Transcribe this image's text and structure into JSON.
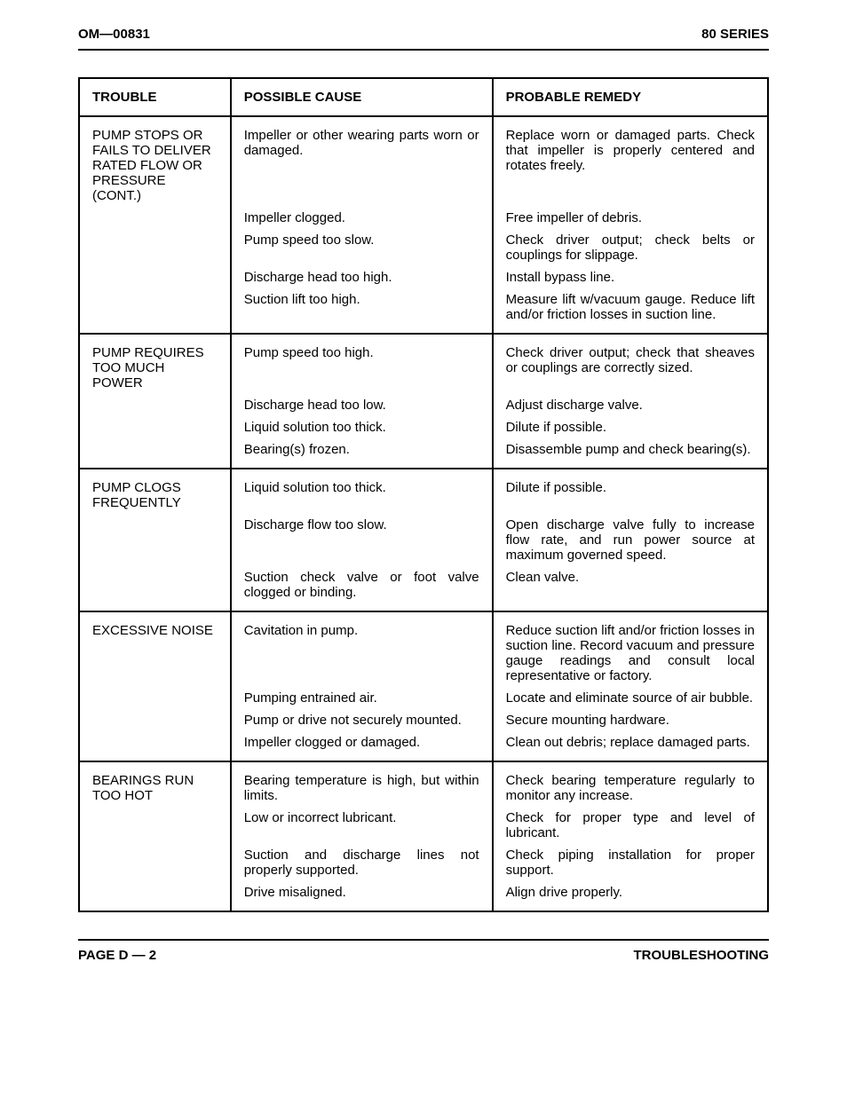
{
  "header": {
    "left": "OM—00831",
    "right": "80 SERIES"
  },
  "footer": {
    "left": "PAGE D — 2",
    "right": "TROUBLESHOOTING"
  },
  "columns": {
    "trouble": "TROUBLE",
    "cause": "POSSIBLE CAUSE",
    "remedy": "PROBABLE REMEDY"
  },
  "sections": [
    {
      "trouble": "PUMP STOPS OR FAILS TO DELIVER RATED FLOW OR PRESSURE (cont.)",
      "rows": [
        {
          "cause": "Impeller or other wearing parts worn or damaged.",
          "remedy": "Replace worn or damaged parts. Check that impeller is properly centered and rotates freely."
        },
        {
          "cause": "Impeller clogged.",
          "remedy": "Free impeller of debris."
        },
        {
          "cause": "Pump speed too slow.",
          "remedy": "Check driver output; check belts or couplings for slippage."
        },
        {
          "cause": "Discharge head too high.",
          "remedy": "Install bypass line."
        },
        {
          "cause": "Suction lift too high.",
          "remedy": "Measure lift w/vacuum gauge. Reduce lift and/or friction losses in suction line."
        }
      ]
    },
    {
      "trouble": "PUMP REQUIRES TOO MUCH POWER",
      "rows": [
        {
          "cause": "Pump speed too high.",
          "remedy": "Check driver output; check that sheaves or couplings are correctly sized."
        },
        {
          "cause": "Discharge head too low.",
          "remedy": "Adjust discharge valve."
        },
        {
          "cause": "Liquid solution too thick.",
          "remedy": "Dilute if possible."
        },
        {
          "cause": "Bearing(s) frozen.",
          "remedy": "Disassemble pump and check bearing(s)."
        }
      ]
    },
    {
      "trouble": "PUMP CLOGS FREQUENTLY",
      "rows": [
        {
          "cause": "Liquid solution too thick.",
          "remedy": "Dilute if possible."
        },
        {
          "cause": "Discharge flow too slow.",
          "remedy": "Open discharge valve fully to increase flow rate, and run power source at maximum governed speed."
        },
        {
          "cause": "Suction check valve or foot valve clogged or binding.",
          "remedy": "Clean valve."
        }
      ]
    },
    {
      "trouble": "EXCESSIVE NOISE",
      "rows": [
        {
          "cause": "Cavitation in pump.",
          "remedy": "Reduce suction lift and/or friction losses in suction line. Record vacuum and pressure gauge readings and consult local representative or factory."
        },
        {
          "cause": "Pumping entrained air.",
          "remedy": "Locate and eliminate source of air bubble."
        },
        {
          "cause": "Pump or drive not securely mounted.",
          "remedy": "Secure mounting hardware."
        },
        {
          "cause": "Impeller clogged or damaged.",
          "remedy": "Clean out debris; replace damaged parts."
        }
      ]
    },
    {
      "trouble": "BEARINGS RUN TOO HOT",
      "rows": [
        {
          "cause": "Bearing temperature is high, but within limits.",
          "remedy": "Check bearing temperature regularly to monitor any increase."
        },
        {
          "cause": "Low or incorrect lubricant.",
          "remedy": "Check for proper type and level of lubricant."
        },
        {
          "cause": "Suction and discharge lines not properly supported.",
          "remedy": "Check piping installation for proper support."
        },
        {
          "cause": "Drive misaligned.",
          "remedy": "Align drive properly."
        }
      ]
    }
  ]
}
